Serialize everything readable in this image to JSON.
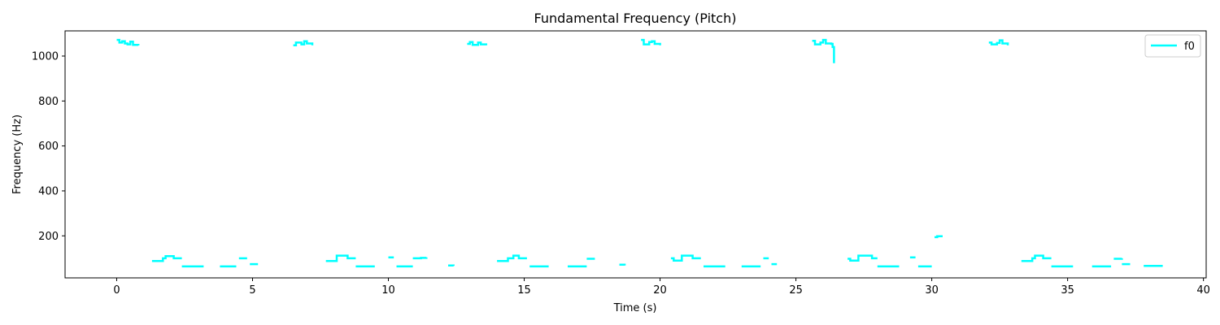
{
  "chart_data": {
    "type": "line",
    "title": "Fundamental Frequency (Pitch)",
    "xlabel": "Time (s)",
    "ylabel": "Frequency (Hz)",
    "xlim": [
      -1.9,
      40.1
    ],
    "ylim": [
      13,
      1112
    ],
    "xticks": [
      0,
      5,
      10,
      15,
      20,
      25,
      30,
      35,
      40
    ],
    "yticks": [
      200,
      400,
      600,
      800,
      1000
    ],
    "grid": false,
    "legend": {
      "position": "top-right",
      "entries": [
        "f0"
      ]
    },
    "colors": {
      "f0": "#00ffff"
    },
    "series": [
      {
        "name": "f0",
        "segments": [
          [
            [
              0.0,
              1072
            ],
            [
              0.1,
              1060
            ],
            [
              0.2,
              1066
            ],
            [
              0.3,
              1056
            ],
            [
              0.4,
              1052
            ],
            [
              0.5,
              1064
            ],
            [
              0.6,
              1050
            ],
            [
              0.8,
              1048
            ]
          ],
          [
            [
              1.3,
              88
            ],
            [
              1.6,
              88
            ],
            [
              1.7,
              100
            ],
            [
              1.8,
              110
            ],
            [
              2.0,
              110
            ],
            [
              2.1,
              100
            ],
            [
              2.4,
              100
            ]
          ],
          [
            [
              2.4,
              64
            ],
            [
              3.2,
              64
            ]
          ],
          [
            [
              3.8,
              64
            ],
            [
              4.4,
              64
            ]
          ],
          [
            [
              4.5,
              100
            ],
            [
              4.8,
              100
            ]
          ],
          [
            [
              4.9,
              74
            ],
            [
              5.2,
              74
            ]
          ],
          [
            [
              6.5,
              1048
            ],
            [
              6.6,
              1060
            ],
            [
              6.8,
              1052
            ],
            [
              6.9,
              1066
            ],
            [
              7.0,
              1056
            ],
            [
              7.2,
              1048
            ]
          ],
          [
            [
              7.7,
              88
            ],
            [
              8.0,
              88
            ],
            [
              8.1,
              112
            ],
            [
              8.4,
              112
            ],
            [
              8.5,
              100
            ],
            [
              8.8,
              100
            ]
          ],
          [
            [
              8.8,
              64
            ],
            [
              9.5,
              64
            ]
          ],
          [
            [
              10.0,
              104
            ],
            [
              10.2,
              104
            ]
          ],
          [
            [
              10.3,
              64
            ],
            [
              10.9,
              64
            ]
          ],
          [
            [
              10.9,
              100
            ],
            [
              11.2,
              102
            ],
            [
              11.4,
              104
            ]
          ],
          [
            [
              12.2,
              68
            ],
            [
              12.4,
              66
            ]
          ],
          [
            [
              12.9,
              1054
            ],
            [
              13.0,
              1062
            ],
            [
              13.1,
              1050
            ],
            [
              13.3,
              1060
            ],
            [
              13.4,
              1052
            ],
            [
              13.6,
              1048
            ]
          ],
          [
            [
              14.0,
              88
            ],
            [
              14.3,
              88
            ],
            [
              14.4,
              100
            ],
            [
              14.6,
              112
            ],
            [
              14.8,
              100
            ],
            [
              15.1,
              100
            ]
          ],
          [
            [
              15.2,
              64
            ],
            [
              15.9,
              64
            ]
          ],
          [
            [
              16.6,
              64
            ],
            [
              17.3,
              64
            ]
          ],
          [
            [
              17.3,
              98
            ],
            [
              17.6,
              98
            ]
          ],
          [
            [
              18.5,
              72
            ],
            [
              18.7,
              68
            ]
          ],
          [
            [
              19.3,
              1072
            ],
            [
              19.4,
              1052
            ],
            [
              19.6,
              1062
            ],
            [
              19.7,
              1066
            ],
            [
              19.8,
              1054
            ],
            [
              20.0,
              1048
            ]
          ],
          [
            [
              20.4,
              100
            ],
            [
              20.5,
              90
            ],
            [
              20.7,
              90
            ],
            [
              20.8,
              112
            ],
            [
              21.1,
              112
            ],
            [
              21.2,
              100
            ],
            [
              21.5,
              100
            ]
          ],
          [
            [
              21.6,
              64
            ],
            [
              22.4,
              64
            ]
          ],
          [
            [
              23.0,
              64
            ],
            [
              23.7,
              64
            ]
          ],
          [
            [
              23.8,
              100
            ],
            [
              24.0,
              100
            ]
          ],
          [
            [
              24.1,
              74
            ],
            [
              24.3,
              74
            ]
          ],
          [
            [
              25.6,
              1068
            ],
            [
              25.7,
              1052
            ],
            [
              25.9,
              1060
            ],
            [
              26.0,
              1072
            ],
            [
              26.1,
              1056
            ],
            [
              26.3,
              1054
            ],
            [
              26.35,
              1040
            ],
            [
              26.4,
              968
            ]
          ],
          [
            [
              26.9,
              98
            ],
            [
              27.0,
              90
            ],
            [
              27.2,
              90
            ],
            [
              27.3,
              112
            ],
            [
              27.7,
              112
            ],
            [
              27.8,
              100
            ],
            [
              28.0,
              100
            ]
          ],
          [
            [
              28.0,
              64
            ],
            [
              28.8,
              64
            ]
          ],
          [
            [
              29.2,
              104
            ],
            [
              29.4,
              104
            ]
          ],
          [
            [
              29.5,
              64
            ],
            [
              30.0,
              64
            ]
          ],
          [
            [
              30.1,
              194
            ],
            [
              30.2,
              198
            ],
            [
              30.4,
              198
            ]
          ],
          [
            [
              32.1,
              1060
            ],
            [
              32.2,
              1052
            ],
            [
              32.4,
              1058
            ],
            [
              32.5,
              1070
            ],
            [
              32.6,
              1056
            ],
            [
              32.8,
              1048
            ]
          ],
          [
            [
              33.3,
              88
            ],
            [
              33.6,
              88
            ],
            [
              33.7,
              100
            ],
            [
              33.8,
              112
            ],
            [
              34.0,
              112
            ],
            [
              34.1,
              100
            ],
            [
              34.4,
              100
            ]
          ],
          [
            [
              34.4,
              64
            ],
            [
              35.2,
              64
            ]
          ],
          [
            [
              35.9,
              64
            ],
            [
              36.6,
              64
            ]
          ],
          [
            [
              36.7,
              98
            ],
            [
              37.0,
              100
            ]
          ],
          [
            [
              37.0,
              74
            ],
            [
              37.3,
              74
            ]
          ],
          [
            [
              37.8,
              66
            ],
            [
              38.5,
              66
            ]
          ]
        ]
      }
    ]
  }
}
